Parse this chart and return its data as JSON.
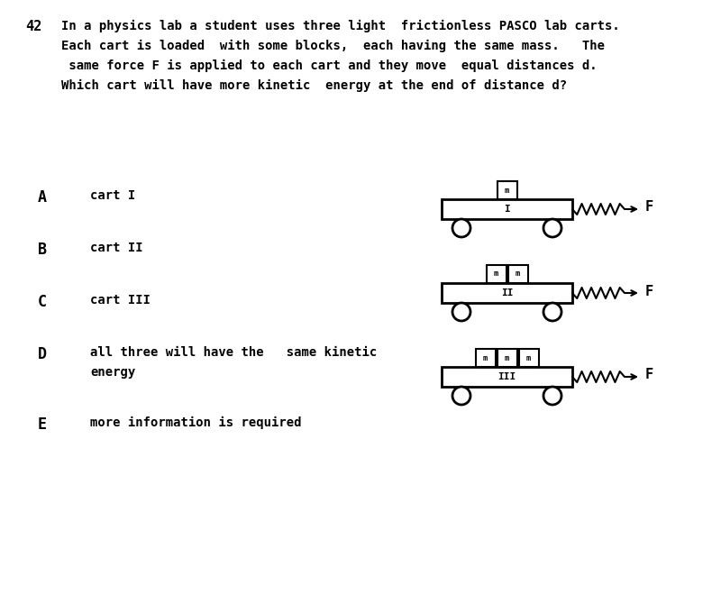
{
  "question_number": "42",
  "question_text_lines": [
    "In a physics lab a student uses three light  frictionless PASCO lab carts.",
    "Each cart is loaded  with some blocks,  each having the same mass.   The",
    " same force F is applied to each cart and they move  equal distances d.",
    "Which cart will have more kinetic  energy at the end of distance d?"
  ],
  "options": [
    {
      "label": "A",
      "text": "cart I"
    },
    {
      "label": "B",
      "text": "cart II"
    },
    {
      "label": "C",
      "text": "cart III"
    },
    {
      "label": "D",
      "text": "all three will have the   same kinetic\nenergy"
    },
    {
      "label": "E",
      "text": "more information is required"
    }
  ],
  "carts": [
    {
      "label": "I",
      "num_blocks": 1
    },
    {
      "label": "II",
      "num_blocks": 2
    },
    {
      "label": "III",
      "num_blocks": 3
    }
  ],
  "bg_color": "#ffffff",
  "text_color": "#000000"
}
